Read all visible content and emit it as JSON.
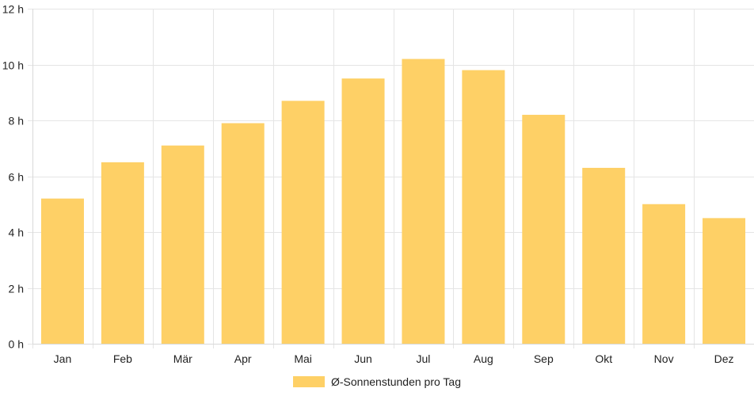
{
  "chart_data": {
    "type": "bar",
    "categories": [
      "Jan",
      "Feb",
      "Mär",
      "Apr",
      "Mai",
      "Jun",
      "Jul",
      "Aug",
      "Sep",
      "Okt",
      "Nov",
      "Dez"
    ],
    "series": [
      {
        "name": "Ø-Sonnenstunden pro Tag",
        "values": [
          5.2,
          6.5,
          7.1,
          7.9,
          8.7,
          9.5,
          10.2,
          9.8,
          8.2,
          6.3,
          5.0,
          4.5
        ],
        "color": "#fed066"
      }
    ],
    "ylim": [
      0,
      12
    ],
    "yticks": [
      0,
      2,
      4,
      6,
      8,
      10,
      12
    ],
    "ytick_suffix": " h",
    "grid": true,
    "grid_color": "#e5e5e5",
    "legend_position": "bottom",
    "title": "",
    "xlabel": "",
    "ylabel": ""
  }
}
